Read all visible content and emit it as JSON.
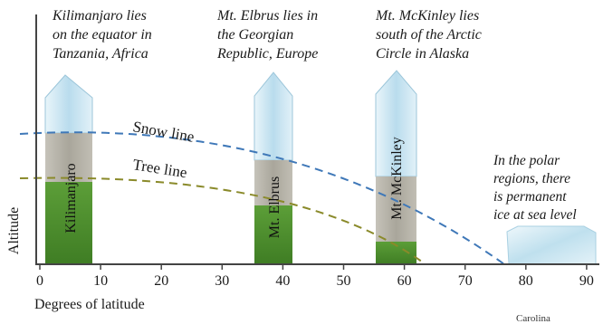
{
  "annotations": {
    "kilimanjaro": [
      "Kilimanjaro lies",
      "on the equator in",
      "Tanzania, Africa"
    ],
    "elbrus": [
      "Mt. Elbrus lies in",
      "the Georgian",
      "Republic, Europe"
    ],
    "mckinley": [
      "Mt. McKinley lies",
      "south of the Arctic",
      "Circle in Alaska"
    ],
    "polar": [
      "In the polar",
      "regions, there",
      "is permanent",
      "ice at sea level"
    ]
  },
  "curve_labels": {
    "snow_line": "Snow line",
    "tree_line": "Tree line"
  },
  "mountains": [
    {
      "name": "Kilimanjaro",
      "latitude": 3
    },
    {
      "name": "Mt. Elbrus",
      "latitude": 43
    },
    {
      "name": "Mt. McKinley",
      "latitude": 63
    }
  ],
  "axis": {
    "ylabel": "Altitude",
    "xlabel": "Degrees of latitude",
    "xticks": [
      "0",
      "10",
      "20",
      "30",
      "40",
      "50",
      "60",
      "70",
      "80",
      "90"
    ]
  },
  "credit": "Carolina",
  "colors": {
    "snow_line": "#3f78b8",
    "tree_line": "#8a8a2a",
    "ice": "#c9e6f2",
    "rock": "#b3b0a6",
    "forest": "#4d8f2c",
    "axis": "#444444"
  }
}
